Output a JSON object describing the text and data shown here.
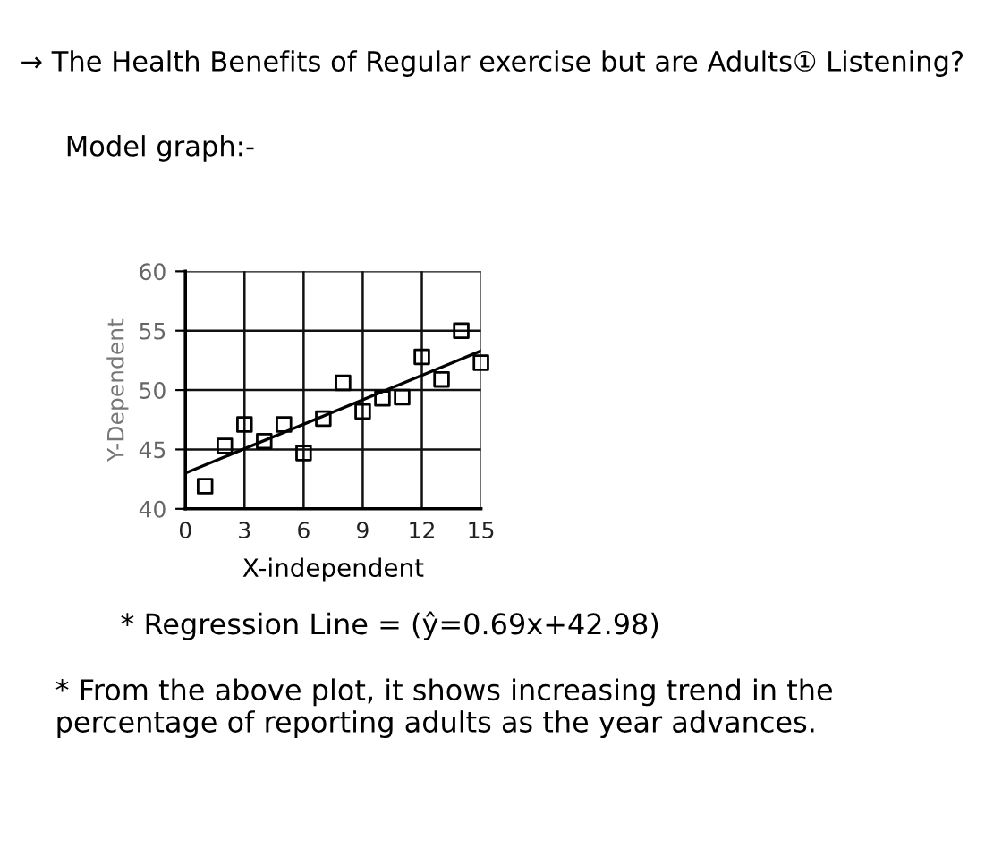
{
  "chart_data": {
    "type": "scatter",
    "title": "→ The Health Benefits of Regular exercise but are Adults① Listening?",
    "subtitle": "Model graph:-",
    "xlabel": "X-independent",
    "ylabel": "Y-Dependent",
    "series": [
      {
        "color": "#000000",
        "marker": "square",
        "x": [
          1,
          2,
          3,
          4,
          5,
          6,
          7,
          8,
          9,
          10,
          11,
          12,
          13,
          14,
          15
        ],
        "values": [
          41.9,
          45.3,
          47.1,
          45.7,
          47.1,
          44.7,
          47.6,
          50.6,
          48.2,
          49.3,
          49.4,
          52.8,
          50.9,
          55.0,
          52.3
        ]
      },
      {
        "type": "line",
        "color": "#000000",
        "x": [
          0,
          15
        ],
        "values": [
          43.0,
          53.3
        ]
      }
    ],
    "xlim": [
      0,
      15
    ],
    "ylim": [
      40,
      60
    ],
    "xticks": [
      0,
      3,
      6,
      9,
      12,
      15
    ],
    "yticks": [
      40,
      45,
      50,
      55,
      60
    ],
    "grid": true,
    "annotations": [
      "* Regression Line = (ŷ=0.69x+42.98)",
      "* From the above plot, it shows increasing trend in the percentage of reporting adults as the year advances."
    ]
  }
}
